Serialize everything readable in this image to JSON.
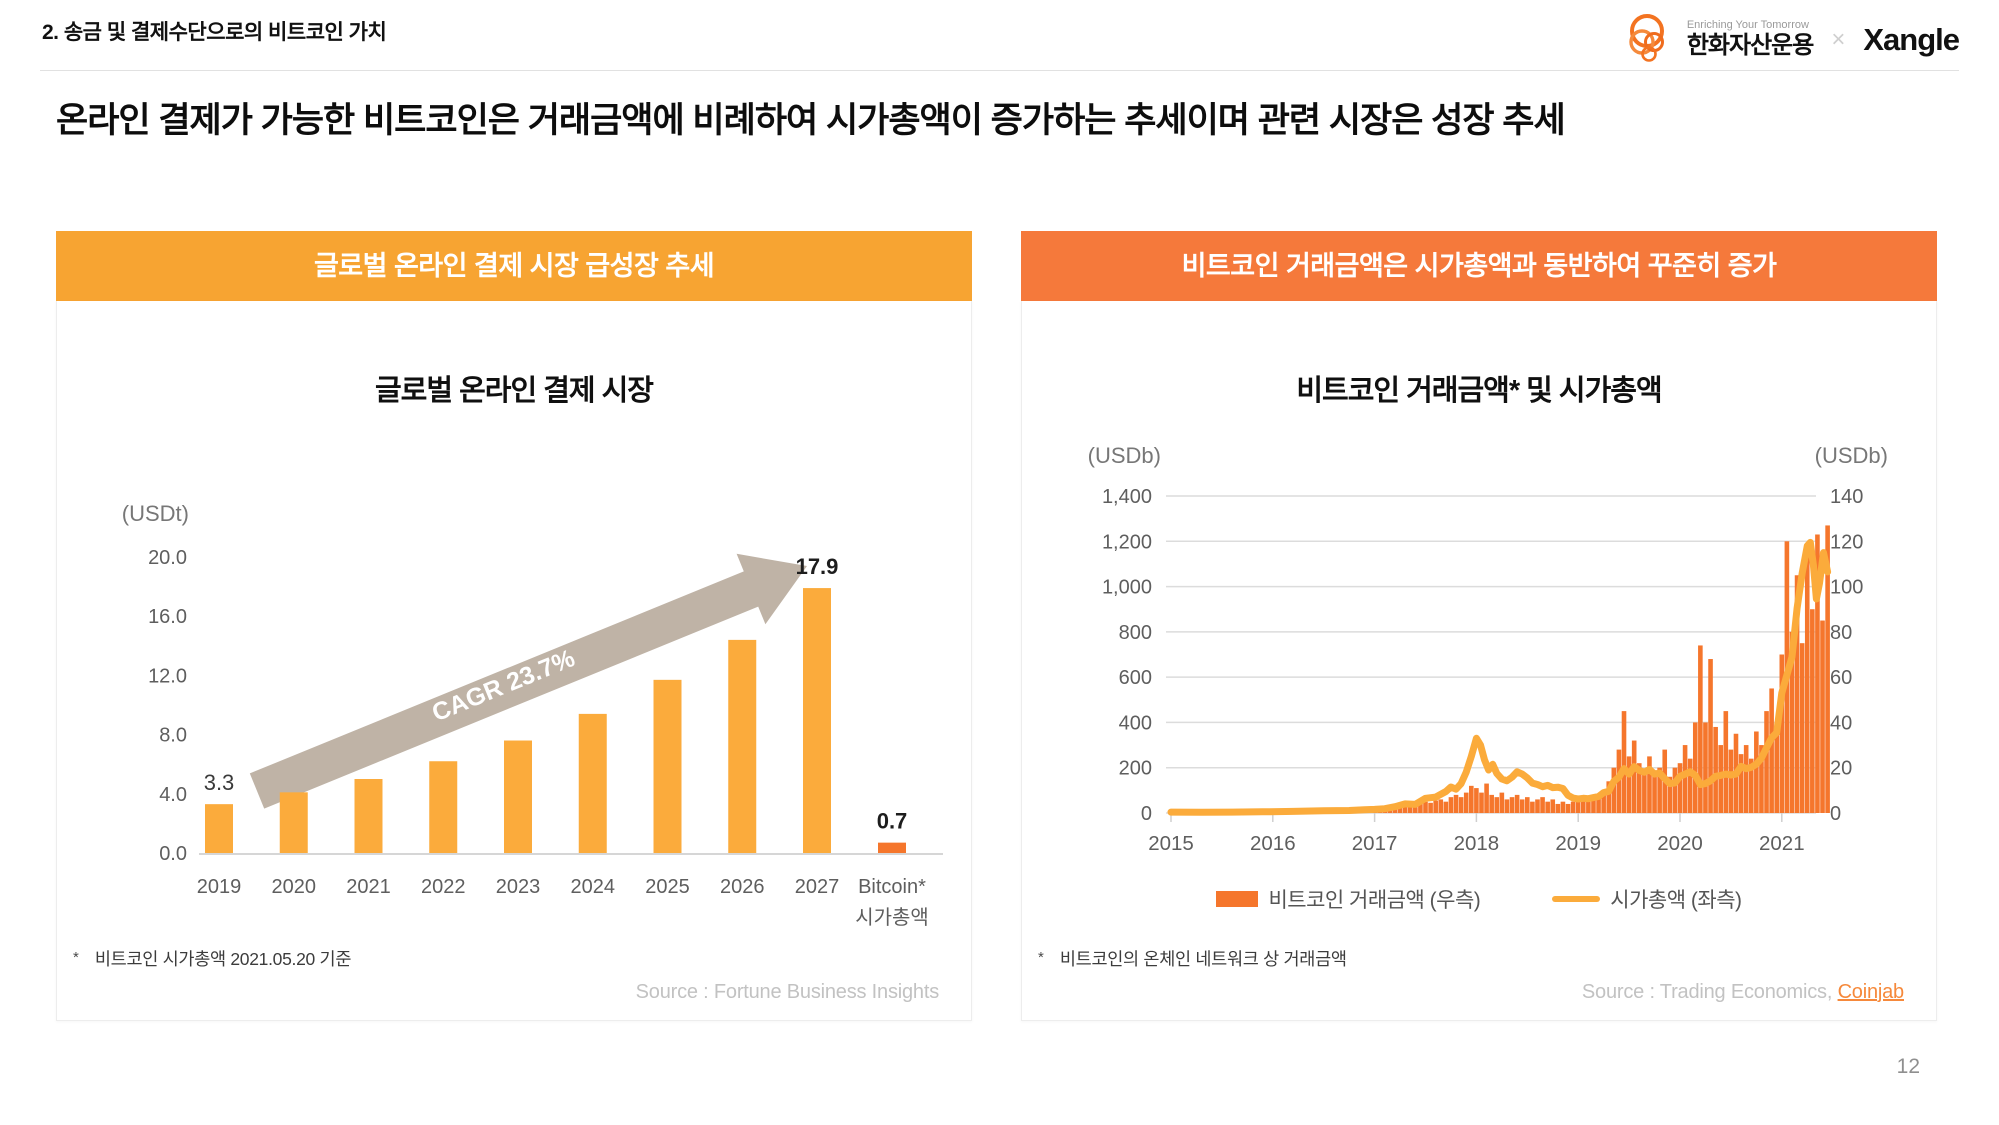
{
  "page": {
    "section_title": "2. 송금 및 결제수단으로의 비트코인 가치",
    "main_title": "온라인 결제가 가능한 비트코인은 거래금액에 비례하여 시가총액이 증가하는 추세이며 관련 시장은 성장 추세",
    "page_number": "12"
  },
  "logo": {
    "tagline": "Enriching Your Tomorrow",
    "company": "한화자산운용",
    "separator": "×",
    "partner": "Xangle"
  },
  "left_panel": {
    "header": "글로벌 온라인 결제 시장 급성장 추세",
    "footnote_mark": "*",
    "footnote": "비트코인 시가총액 2021.05.20 기준",
    "source": "Source : Fortune Business Insights"
  },
  "right_panel": {
    "header": "비트코인 거래금액은 시가총액과 동반하여 꾸준히 증가",
    "footnote_mark": "*",
    "footnote": "비트코인의 온체인 네트워크 상 거래금액",
    "source_prefix": "Source : Trading Economics, ",
    "source_link": "Coinjab",
    "legend": [
      {
        "label": "비트코인 거래금액 (우측)",
        "swatch": "rect",
        "color": "#F5762C"
      },
      {
        "label": "시가총액 (좌측)",
        "swatch": "line",
        "color": "#FBAB3B"
      }
    ]
  },
  "colors": {
    "left_header_bg": "#F7A432",
    "right_header_bg": "#F5793B",
    "bar_light_orange": "#FBAB3C",
    "bar_dark_orange": "#F5762C",
    "mcap_line": "#FBAB3B",
    "arrow_fill": "#BFB3A6",
    "axis_text": "#5E5E5E",
    "grid_line": "#DCDCDC",
    "source_text": "#C2C2C2",
    "link_orange": "#F6893B"
  },
  "chart_data": [
    {
      "type": "bar",
      "title": "글로벌 온라인 결제 시장",
      "unit_label": "(USDt)",
      "categories": [
        "2019",
        "2020",
        "2021",
        "2022",
        "2023",
        "2024",
        "2025",
        "2026",
        "2027",
        "Bitcoin*"
      ],
      "last_category_line2": "시가총액",
      "values": [
        3.3,
        4.1,
        5.0,
        6.2,
        7.6,
        9.4,
        11.7,
        14.4,
        17.9,
        0.7
      ],
      "bar_color": "#FBAB3C",
      "last_bar_color": "#F5762C",
      "value_labels": [
        {
          "index": 0,
          "text": "3.3",
          "bold": false
        },
        {
          "index": 8,
          "text": "17.9",
          "bold": true
        },
        {
          "index": 9,
          "text": "0.7",
          "bold": true
        }
      ],
      "y_ticks": [
        "20.0",
        "16.0",
        "12.0",
        "8.0",
        "4.0",
        "0.0"
      ],
      "ylim": [
        0,
        20
      ],
      "grid": false,
      "annotation": {
        "text": "CAGR 23.7%"
      }
    },
    {
      "type": "combo",
      "title": "비트코인 거래금액* 및 시가총액",
      "left_axis_label": "(USDb)",
      "right_axis_label": "(USDb)",
      "left_ticks": [
        "1,400",
        "1,200",
        "1,000",
        "800",
        "600",
        "400",
        "200",
        "0"
      ],
      "right_ticks": [
        "140",
        "120",
        "100",
        "80",
        "60",
        "40",
        "20",
        "0"
      ],
      "left_ylim": [
        0,
        1400
      ],
      "right_ylim": [
        0,
        140
      ],
      "x_ticks": [
        "2015",
        "2016",
        "2017",
        "2018",
        "2019",
        "2020",
        "2021"
      ],
      "x_range": [
        2015,
        2021.45
      ],
      "grid": true,
      "legend_position": "bottom",
      "series": [
        {
          "name": "비트코인 거래금액 (우측)",
          "axis": "right",
          "type": "bars",
          "color": "#F5762C",
          "x_start": 2015.0,
          "x_step": 0.05,
          "values": [
            0.8,
            1,
            0.9,
            1,
            1,
            0.8,
            1,
            0.9,
            1,
            1,
            0.9,
            1,
            0.8,
            1,
            1,
            1,
            0.9,
            1,
            0.8,
            1,
            0.9,
            1,
            1,
            0.9,
            1,
            1,
            0.8,
            1,
            1,
            1.2,
            1.5,
            1.5,
            2,
            1.5,
            2,
            2,
            2,
            2.5,
            2,
            2.5,
            2.5,
            3,
            2.5,
            3,
            3.5,
            3,
            4,
            3.5,
            4,
            4.5,
            5,
            4.5,
            5.5,
            6,
            5,
            7,
            8,
            7,
            9,
            12,
            11,
            9,
            13,
            8,
            7,
            9,
            6,
            7,
            8,
            6,
            7,
            5,
            6,
            7,
            5,
            6,
            4,
            5,
            4,
            5,
            5,
            6,
            5,
            7,
            8,
            10,
            14,
            20,
            28,
            45,
            25,
            32,
            22,
            18,
            25,
            17,
            20,
            28,
            16,
            20,
            22,
            30,
            24,
            40,
            74,
            40,
            68,
            38,
            30,
            45,
            28,
            35,
            26,
            30,
            24,
            36,
            30,
            45,
            55,
            40,
            70,
            120,
            80,
            105,
            75,
            115,
            90,
            123,
            85,
            127
          ]
        },
        {
          "name": "시가총액 (좌측)",
          "axis": "left",
          "type": "line",
          "color": "#FBAB3B",
          "points": [
            [
              2015.0,
              4
            ],
            [
              2015.3,
              3.5
            ],
            [
              2015.6,
              4
            ],
            [
              2015.9,
              5.5
            ],
            [
              2016.2,
              7
            ],
            [
              2016.5,
              10
            ],
            [
              2016.75,
              11
            ],
            [
              2016.9,
              14
            ],
            [
              2017.0,
              16
            ],
            [
              2017.1,
              19
            ],
            [
              2017.2,
              28
            ],
            [
              2017.3,
              40
            ],
            [
              2017.4,
              38
            ],
            [
              2017.5,
              65
            ],
            [
              2017.6,
              70
            ],
            [
              2017.7,
              95
            ],
            [
              2017.75,
              115
            ],
            [
              2017.8,
              105
            ],
            [
              2017.85,
              130
            ],
            [
              2017.9,
              180
            ],
            [
              2017.95,
              250
            ],
            [
              2018.0,
              330
            ],
            [
              2018.04,
              300
            ],
            [
              2018.08,
              235
            ],
            [
              2018.12,
              190
            ],
            [
              2018.16,
              215
            ],
            [
              2018.2,
              175
            ],
            [
              2018.25,
              150
            ],
            [
              2018.3,
              142
            ],
            [
              2018.35,
              158
            ],
            [
              2018.4,
              182
            ],
            [
              2018.45,
              172
            ],
            [
              2018.5,
              155
            ],
            [
              2018.55,
              132
            ],
            [
              2018.6,
              126
            ],
            [
              2018.65,
              116
            ],
            [
              2018.7,
              122
            ],
            [
              2018.75,
              112
            ],
            [
              2018.8,
              114
            ],
            [
              2018.85,
              108
            ],
            [
              2018.9,
              78
            ],
            [
              2018.95,
              66
            ],
            [
              2019.0,
              62
            ],
            [
              2019.05,
              65
            ],
            [
              2019.1,
              63
            ],
            [
              2019.15,
              68
            ],
            [
              2019.2,
              73
            ],
            [
              2019.25,
              90
            ],
            [
              2019.3,
              96
            ],
            [
              2019.35,
              140
            ],
            [
              2019.4,
              158
            ],
            [
              2019.45,
              196
            ],
            [
              2019.5,
              172
            ],
            [
              2019.55,
              205
            ],
            [
              2019.6,
              188
            ],
            [
              2019.65,
              180
            ],
            [
              2019.7,
              192
            ],
            [
              2019.75,
              172
            ],
            [
              2019.8,
              176
            ],
            [
              2019.85,
              152
            ],
            [
              2019.9,
              130
            ],
            [
              2019.95,
              133
            ],
            [
              2020.0,
              162
            ],
            [
              2020.05,
              172
            ],
            [
              2020.1,
              182
            ],
            [
              2020.15,
              166
            ],
            [
              2020.2,
              126
            ],
            [
              2020.25,
              130
            ],
            [
              2020.3,
              142
            ],
            [
              2020.35,
              162
            ],
            [
              2020.4,
              166
            ],
            [
              2020.45,
              172
            ],
            [
              2020.5,
              168
            ],
            [
              2020.55,
              172
            ],
            [
              2020.6,
              206
            ],
            [
              2020.65,
              196
            ],
            [
              2020.7,
              202
            ],
            [
              2020.75,
              216
            ],
            [
              2020.8,
              242
            ],
            [
              2020.85,
              288
            ],
            [
              2020.9,
              332
            ],
            [
              2020.95,
              355
            ],
            [
              2021.0,
              530
            ],
            [
              2021.05,
              610
            ],
            [
              2021.1,
              690
            ],
            [
              2021.15,
              905
            ],
            [
              2021.2,
              1060
            ],
            [
              2021.25,
              1180
            ],
            [
              2021.28,
              1195
            ],
            [
              2021.31,
              1095
            ],
            [
              2021.34,
              945
            ],
            [
              2021.37,
              1015
            ],
            [
              2021.41,
              1150
            ],
            [
              2021.45,
              1065
            ]
          ]
        }
      ]
    }
  ]
}
